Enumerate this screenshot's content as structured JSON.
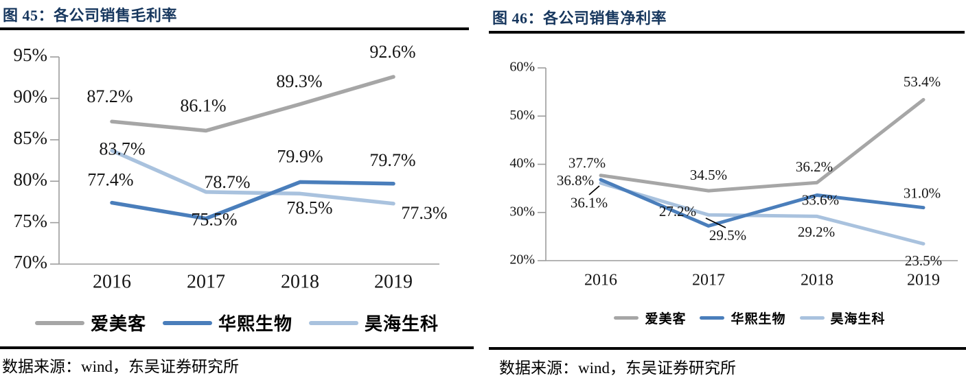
{
  "page": {
    "source_text": "数据来源：wind，东吴证券研究所"
  },
  "colors": {
    "title_navy": "#17375e",
    "rule_black": "#000000",
    "axis_gray": "#9c9c9c",
    "series_aimeike": "#a6a6a6",
    "series_huaxi": "#4a7ebb",
    "series_haohai": "#a9c2de"
  },
  "chart_data": [
    {
      "type": "line",
      "title": "图 45：各公司销售毛利率",
      "categories": [
        "2016",
        "2017",
        "2018",
        "2019"
      ],
      "ylim": [
        70,
        95
      ],
      "ytick_values": [
        70,
        75,
        80,
        85,
        90,
        95
      ],
      "ytick_labels": [
        "70%",
        "75%",
        "80%",
        "85%",
        "90%",
        "95%"
      ],
      "grid": false,
      "legend_position": "bottom",
      "series": [
        {
          "name": "爱美客",
          "color": "#a6a6a6",
          "values": [
            87.2,
            86.1,
            89.3,
            92.6
          ],
          "labels": [
            "87.2%",
            "86.1%",
            "89.3%",
            "92.6%"
          ]
        },
        {
          "name": "华熙生物",
          "color": "#4a7ebb",
          "values": [
            77.4,
            75.5,
            79.9,
            79.7
          ],
          "labels": [
            "77.4%",
            "75.5%",
            "79.9%",
            "79.7%"
          ]
        },
        {
          "name": "昊海生科",
          "color": "#a9c2de",
          "values": [
            83.7,
            78.7,
            78.5,
            77.3
          ],
          "labels": [
            "83.7%",
            "78.7%",
            "78.5%",
            "77.3%"
          ]
        }
      ]
    },
    {
      "type": "line",
      "title": "图 46：各公司销售净利率",
      "categories": [
        "2016",
        "2017",
        "2018",
        "2019"
      ],
      "ylim": [
        20,
        60
      ],
      "ytick_values": [
        20,
        30,
        40,
        50,
        60
      ],
      "ytick_labels": [
        "20%",
        "30%",
        "40%",
        "50%",
        "60%"
      ],
      "grid": false,
      "legend_position": "bottom",
      "series": [
        {
          "name": "爱美客",
          "color": "#a6a6a6",
          "values": [
            37.7,
            34.5,
            36.2,
            53.4
          ],
          "labels": [
            "37.7%",
            "34.5%",
            "36.2%",
            "53.4%"
          ]
        },
        {
          "name": "华熙生物",
          "color": "#4a7ebb",
          "values": [
            36.8,
            27.2,
            33.6,
            31.0
          ],
          "labels": [
            "36.8%",
            "27.2%",
            "33.6%",
            "31.0%"
          ]
        },
        {
          "name": "昊海生科",
          "color": "#a9c2de",
          "values": [
            36.1,
            29.5,
            29.2,
            23.5
          ],
          "labels": [
            "36.1%",
            "29.5%",
            "29.2%",
            "23.5%"
          ]
        }
      ]
    }
  ]
}
